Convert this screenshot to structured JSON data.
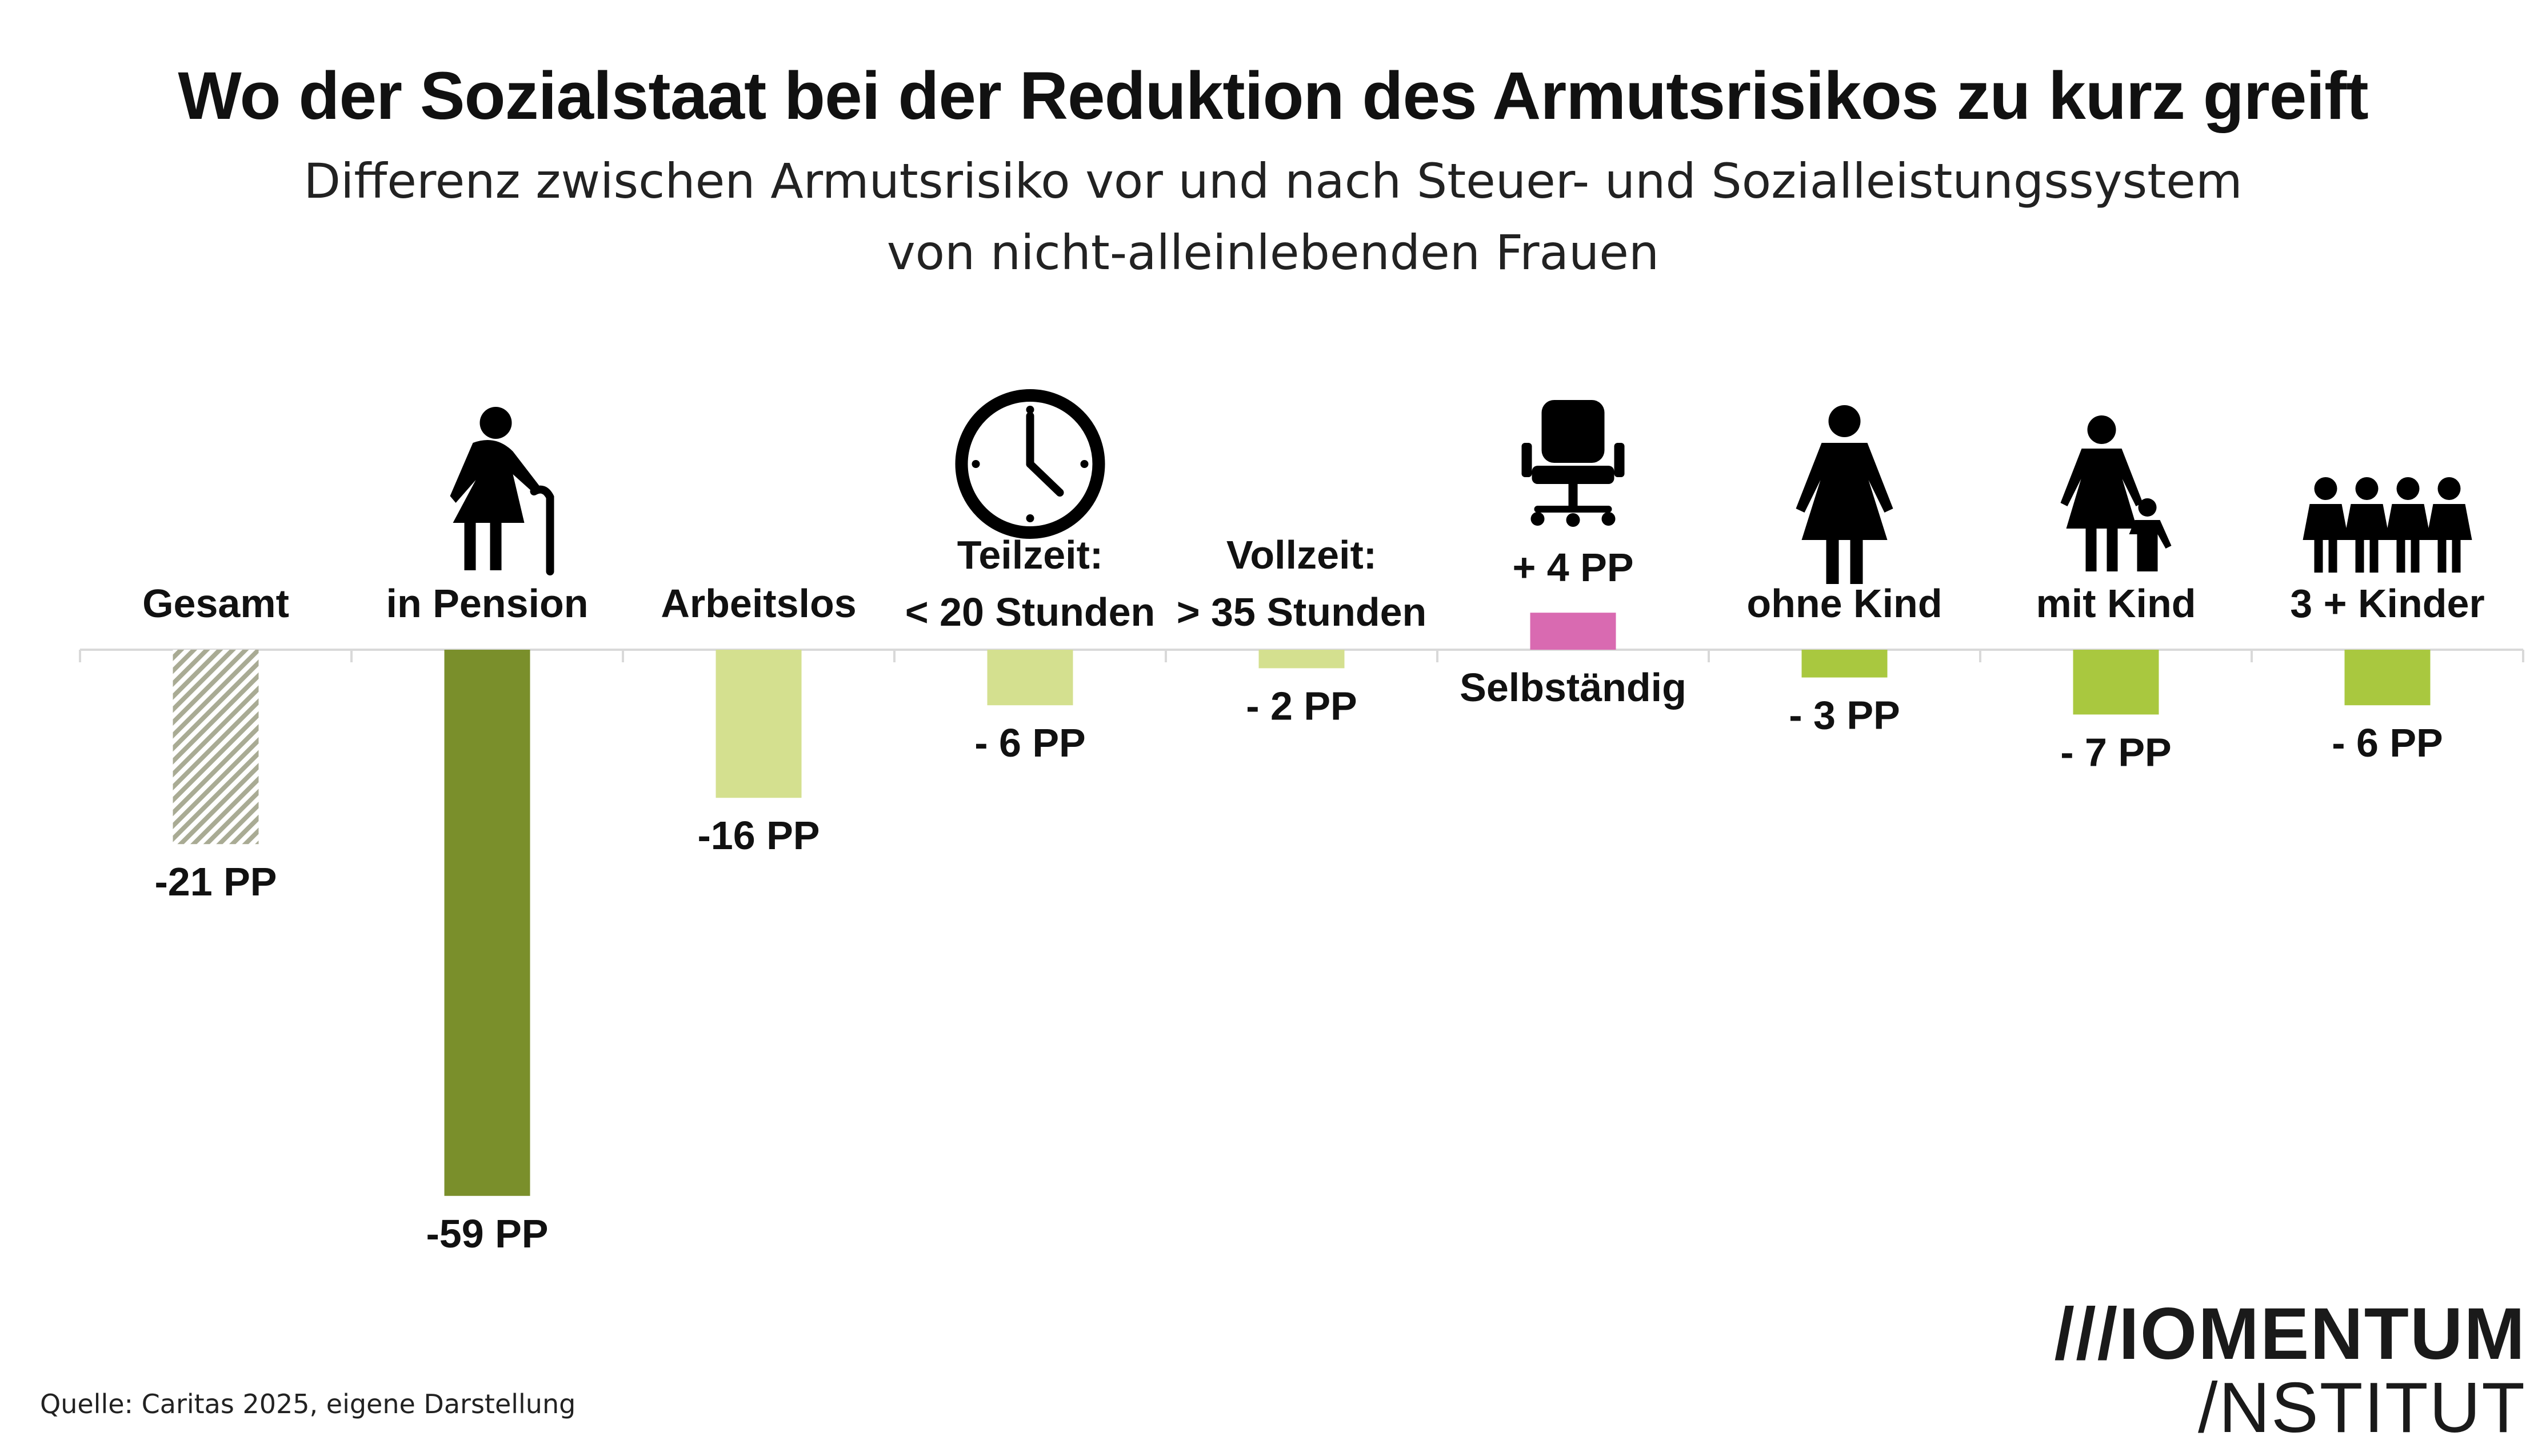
{
  "title": "Wo der Sozialstaat bei der Reduktion des Armutsrisikos zu kurz greift",
  "subtitle_line1": "Differenz zwischen Armutsrisiko vor und nach Steuer- und Sozialleistungssystem",
  "subtitle_line2": "von nicht-alleinlebenden Frauen",
  "source": "Quelle: Caritas 2025, eigene Darstellung",
  "logo": {
    "line1": "///IOMENTUM",
    "line2": "/NSTITUT"
  },
  "colors": {
    "hatch": "#a9ab94",
    "dark_green": "#7a8f2b",
    "light_green": "#d4e08f",
    "lime": "#a9c83f",
    "pink": "#d96ab1",
    "axis": "#d9d9d9"
  },
  "chart_data": {
    "type": "bar",
    "unit": "PP",
    "ylim": [
      -59,
      4
    ],
    "categories": [
      {
        "label": [
          "Gesamt"
        ],
        "value": -21,
        "value_label": "-21 PP",
        "color": "hatch",
        "icon": ""
      },
      {
        "label": [
          "in Pension"
        ],
        "value": -59,
        "value_label": "-59 PP",
        "color": "dark_green",
        "icon": "elderly-woman-with-cane-icon"
      },
      {
        "label": [
          "Arbeitslos"
        ],
        "value": -16,
        "value_label": "-16 PP",
        "color": "light_green",
        "icon": ""
      },
      {
        "label": [
          "Teilzeit:",
          "< 20 Stunden"
        ],
        "value": -6,
        "value_label": "- 6 PP",
        "color": "light_green",
        "icon": "clock-icon"
      },
      {
        "label": [
          "Vollzeit:",
          "> 35 Stunden"
        ],
        "value": -2,
        "value_label": "- 2 PP",
        "color": "light_green",
        "icon": ""
      },
      {
        "label": [
          "Selbständig"
        ],
        "value": 4,
        "value_label": "+ 4 PP",
        "color": "pink",
        "icon": "office-chair-icon"
      },
      {
        "label": [
          "ohne Kind"
        ],
        "value": -3,
        "value_label": "- 3 PP",
        "color": "lime",
        "icon": "woman-icon"
      },
      {
        "label": [
          "mit Kind"
        ],
        "value": -7,
        "value_label": "- 7 PP",
        "color": "lime",
        "icon": "woman-with-child-icon"
      },
      {
        "label": [
          "3 + Kinder"
        ],
        "value": -6,
        "value_label": "- 6 PP",
        "color": "lime",
        "icon": "children-group-icon"
      }
    ]
  }
}
